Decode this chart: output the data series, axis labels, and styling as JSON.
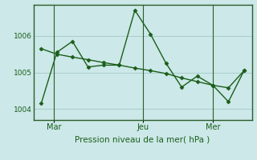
{
  "title": "",
  "xlabel": "Pression niveau de la mer( hPa )",
  "ylabel": "",
  "background_color": "#cce8e8",
  "line_color": "#1a5e1a",
  "grid_color": "#aacccc",
  "tick_label_color": "#1a5e1a",
  "xlabel_color": "#1a5e1a",
  "series1_x": [
    0,
    1,
    2,
    3,
    4,
    5,
    6,
    7,
    8,
    9,
    10,
    11,
    12,
    13
  ],
  "series1_y": [
    1004.15,
    1005.55,
    1005.85,
    1005.15,
    1005.2,
    1005.2,
    1006.7,
    1006.05,
    1005.25,
    1004.6,
    1004.9,
    1004.65,
    1004.2,
    1005.05
  ],
  "series2_x": [
    0,
    1,
    2,
    3,
    4,
    5,
    6,
    7,
    8,
    9,
    10,
    11,
    12,
    13
  ],
  "series2_y": [
    1005.65,
    1005.5,
    1005.42,
    1005.35,
    1005.27,
    1005.2,
    1005.12,
    1005.05,
    1004.97,
    1004.85,
    1004.75,
    1004.65,
    1004.58,
    1005.05
  ],
  "yticks": [
    1004,
    1005,
    1006
  ],
  "ylim": [
    1003.7,
    1006.85
  ],
  "xlim": [
    -0.5,
    13.5
  ],
  "xtick_positions": [
    0.8,
    6.5,
    11.0
  ],
  "xtick_labels": [
    "Mar",
    "Jeu",
    "Mer"
  ],
  "vlines_x": [
    0.8,
    6.5,
    11.0
  ],
  "marker": "D",
  "markersize": 2.5,
  "linewidth": 1.0
}
